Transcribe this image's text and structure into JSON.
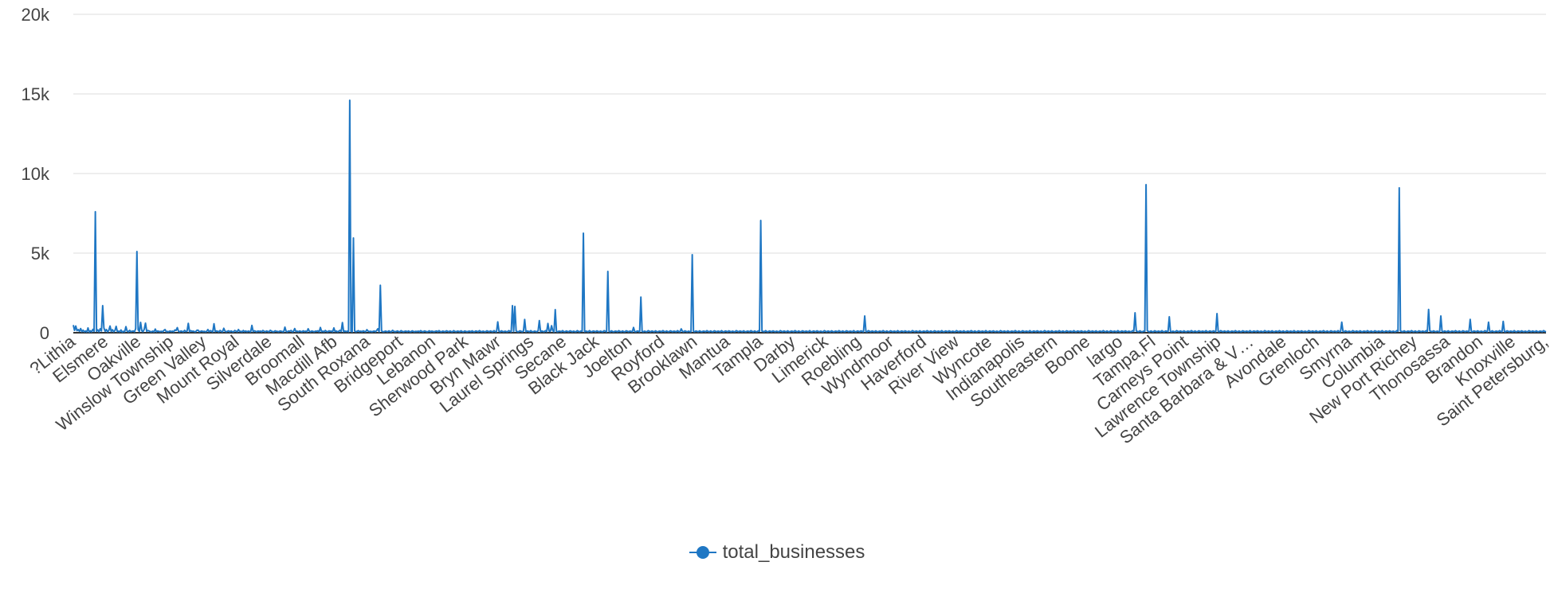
{
  "chart_data": {
    "type": "line",
    "title": "",
    "xlabel": "",
    "ylabel": "",
    "ylim": [
      0,
      20000
    ],
    "y_ticks": [
      0,
      5000,
      10000,
      15000,
      20000
    ],
    "y_tick_labels": [
      "0",
      "5k",
      "10k",
      "15k",
      "20k"
    ],
    "grid": "horizontal",
    "legend_position": "bottom-center",
    "x_tick_labels": [
      "?Lithia",
      "Elsmere",
      "Oakville",
      "Winslow Township",
      "Green Valley",
      "Mount Royal",
      "Silverdale",
      "Broomall",
      "Macdill Afb",
      "South Roxana",
      "Bridgeport",
      "Lebanon",
      "Sherwood Park",
      "Bryn Mawr",
      "Laurel Springs",
      "Secane",
      "Black Jack",
      "Joelton",
      "Royford",
      "Brooklawn",
      "Mantua",
      "Tampla",
      "Darby",
      "Limerick",
      "Roebling",
      "Wyndmoor",
      "Haverford",
      "River View",
      "Wyncote",
      "Indianapolis",
      "Southeastern",
      "Boone",
      "largo",
      "Tampa,Fl",
      "Carneys Point",
      "Lawrence Township",
      "Santa Barbara & V…",
      "Avondale",
      "Grenloch",
      "Smyrna",
      "Columbia",
      "New Port Richey",
      "Thonosassa",
      "Brandon",
      "Knoxville",
      "Saint Petersburg,"
    ],
    "series": [
      {
        "name": "total_businesses",
        "color": "#1f77c4",
        "values": [
          480,
          150,
          420,
          130,
          200,
          90,
          260,
          70,
          160,
          60,
          110,
          50,
          300,
          40,
          120,
          60,
          210,
          80,
          7600,
          90,
          180,
          60,
          250,
          110,
          1700,
          300,
          90,
          200,
          60,
          140,
          420,
          80,
          190,
          60,
          130,
          400,
          70,
          100,
          60,
          170,
          40,
          90,
          60,
          380,
          100,
          60,
          150,
          70,
          90,
          110,
          60,
          260,
          5100,
          180,
          80,
          650,
          120,
          70,
          220,
          600,
          90,
          140,
          110,
          70,
          60,
          100,
          50,
          230,
          60,
          110,
          80,
          70,
          90,
          60,
          140,
          200,
          60,
          80,
          60,
          110,
          70,
          100,
          60,
          170,
          140,
          320,
          90,
          60,
          110,
          80,
          60,
          150,
          70,
          100,
          590,
          60,
          130,
          90,
          100,
          70,
          60,
          150,
          160,
          60,
          80,
          110,
          70,
          90,
          60,
          80,
          200,
          60,
          130,
          90,
          60,
          560,
          70,
          110,
          90,
          60,
          140,
          80,
          60,
          280,
          100,
          60,
          90,
          120,
          60,
          110,
          70,
          60,
          140,
          100,
          60,
          200,
          80,
          90,
          60,
          140,
          70,
          110,
          60,
          100,
          80,
          60,
          460,
          70,
          120,
          90,
          60,
          110,
          80,
          100,
          60,
          140,
          90,
          60,
          110,
          80,
          60,
          150,
          100,
          70,
          60,
          120,
          90,
          80,
          60,
          110,
          90,
          70,
          60,
          350,
          80,
          60,
          110,
          90,
          140,
          60,
          80,
          260,
          70,
          100,
          60,
          110,
          80,
          60,
          120,
          70,
          100,
          60,
          250,
          90,
          60,
          110,
          80,
          60,
          100,
          90,
          120,
          60,
          330,
          70,
          100,
          60,
          140,
          80,
          60,
          120,
          90,
          100,
          60,
          300,
          70,
          110,
          60,
          90,
          150,
          80,
          640,
          60,
          110,
          70,
          100,
          60,
          14600,
          90,
          60,
          5950,
          110,
          60,
          90,
          130,
          70,
          100,
          60,
          120,
          80,
          60,
          190,
          100,
          70,
          90,
          60,
          80,
          110,
          60,
          140,
          250,
          60,
          2980,
          110,
          70,
          60,
          100,
          80,
          60,
          120,
          70,
          60,
          150,
          90,
          60,
          80,
          110,
          70,
          60,
          130,
          80,
          60,
          90,
          100,
          60,
          110,
          70,
          60,
          120,
          80,
          60,
          90,
          70,
          100,
          60,
          130,
          80,
          60,
          110,
          90,
          60,
          70,
          120,
          60,
          100,
          80,
          60,
          90,
          110,
          60,
          130,
          70,
          60,
          100,
          80,
          60,
          120,
          90,
          60,
          110,
          70,
          60,
          130,
          80,
          60,
          100,
          90,
          60,
          120,
          70,
          60,
          110,
          80,
          60,
          90,
          100,
          60,
          120,
          70,
          60,
          110,
          90,
          60,
          130,
          80,
          60,
          100,
          70,
          60,
          120,
          90,
          60,
          110,
          80,
          60,
          130,
          70,
          60,
          680,
          90,
          60,
          120,
          80,
          60,
          100,
          70,
          60,
          130,
          90,
          60,
          1700,
          80,
          1650,
          110,
          70,
          60,
          120,
          90,
          60,
          100,
          830,
          60,
          110,
          90,
          60,
          130,
          70,
          60,
          100,
          80,
          60,
          120,
          760,
          60,
          110,
          80,
          60,
          130,
          70,
          580,
          100,
          90,
          440,
          120,
          60,
          1450,
          80,
          60,
          100,
          90,
          60,
          130,
          70,
          60,
          110,
          80,
          60,
          120,
          90,
          60,
          100,
          70,
          60,
          130,
          80,
          60,
          110,
          90,
          6250,
          60,
          100,
          80,
          60,
          130,
          70,
          60,
          110,
          90,
          60,
          120,
          80,
          60,
          100,
          70,
          60,
          130,
          90,
          60,
          3850,
          80,
          60,
          120,
          70,
          60,
          100,
          90,
          60,
          130,
          80,
          60,
          110,
          70,
          60,
          120,
          90,
          60,
          100,
          80,
          60,
          330,
          70,
          60,
          110,
          90,
          60,
          2240,
          80,
          60,
          100,
          70,
          60,
          130,
          90,
          60,
          110,
          80,
          60,
          120,
          70,
          60,
          100,
          90,
          60,
          130,
          80,
          60,
          110,
          70,
          60,
          120,
          90,
          60,
          100,
          80,
          60,
          130,
          70,
          60,
          240,
          90,
          60,
          120,
          80,
          60,
          100,
          70,
          60,
          4900,
          90,
          60,
          110,
          80,
          60,
          120,
          70,
          60,
          100,
          90,
          60,
          130,
          80,
          60,
          110,
          70,
          60,
          120,
          90,
          60,
          100,
          80,
          60,
          130,
          70,
          60,
          110,
          90,
          60,
          120,
          80,
          60,
          100,
          70,
          60,
          130,
          90,
          60,
          110,
          80,
          60,
          120,
          70,
          60,
          100,
          90,
          60,
          130,
          80,
          60,
          110,
          70,
          60,
          120,
          90,
          7050,
          100,
          80,
          60,
          130,
          70,
          60,
          110,
          90,
          60,
          120,
          80,
          60,
          100,
          70,
          60,
          130,
          90,
          60,
          110,
          80,
          60,
          120,
          70,
          60,
          100,
          90,
          60,
          130,
          80,
          60,
          110,
          70,
          60,
          120,
          90,
          60,
          100,
          80,
          60,
          130,
          70,
          60,
          110,
          90,
          60,
          120,
          80,
          60,
          100,
          70,
          60,
          130,
          90,
          60,
          110,
          80,
          60,
          120,
          70,
          60,
          100,
          90,
          60,
          130,
          80,
          60,
          110,
          70,
          60,
          120,
          90,
          60,
          100,
          80,
          60,
          130,
          70,
          60,
          110,
          90,
          60,
          120,
          80,
          60,
          1050,
          70,
          60,
          130,
          90,
          60,
          110,
          80,
          60,
          120,
          70,
          60,
          100,
          90,
          60,
          130,
          80,
          60,
          110,
          70,
          60,
          120,
          90,
          60,
          100,
          80,
          60,
          130,
          70,
          60,
          110,
          90,
          60,
          120,
          80,
          60,
          100,
          70,
          60,
          130,
          90,
          60,
          110,
          80,
          60,
          120,
          70,
          60,
          100,
          90,
          60,
          130,
          80,
          60,
          110,
          70,
          60,
          120,
          90,
          60,
          100,
          80,
          60,
          130,
          70,
          60,
          110,
          90,
          60,
          120,
          80,
          60,
          100,
          70,
          60,
          130,
          90,
          60,
          110,
          80,
          60,
          120,
          70,
          60,
          100,
          90,
          60,
          130,
          80,
          60,
          110,
          70,
          60,
          120,
          90,
          60,
          100,
          80,
          60,
          130,
          70,
          60,
          110,
          90,
          60,
          120,
          80,
          60,
          100,
          70,
          60,
          130,
          90,
          60,
          110,
          80,
          60,
          120,
          70,
          60,
          100,
          90,
          60,
          130,
          80,
          60,
          110,
          70,
          60,
          120,
          90,
          60,
          100,
          80,
          60,
          130,
          70,
          60,
          110,
          90,
          60,
          120,
          80,
          60,
          100,
          70,
          60,
          130,
          90,
          60,
          110,
          80,
          60,
          120,
          70,
          60,
          100,
          90,
          60,
          130,
          80,
          60,
          110,
          70,
          60,
          120,
          90,
          60,
          100,
          80,
          60,
          130,
          70,
          60,
          110,
          90,
          60,
          120,
          80,
          60,
          100,
          70,
          60,
          130,
          90,
          60,
          110,
          80,
          60,
          120,
          70,
          60,
          100,
          90,
          60,
          130,
          80,
          60,
          110,
          70,
          60,
          120,
          90,
          60,
          100,
          80,
          60,
          130,
          70,
          60,
          110,
          90,
          60,
          120,
          80,
          60,
          100,
          70,
          60,
          130,
          90,
          1250,
          110,
          80,
          60,
          120,
          70,
          60,
          100,
          90,
          9300,
          130,
          80,
          60,
          110,
          70,
          60,
          120,
          90,
          60,
          100,
          80,
          60,
          130,
          70,
          60,
          110,
          90,
          60,
          1000,
          80,
          60,
          100,
          70,
          60,
          130,
          90,
          60,
          110,
          80,
          60,
          120,
          70,
          60,
          100,
          90,
          60,
          130,
          80,
          60,
          110,
          70,
          60,
          120,
          90,
          60,
          100,
          80,
          60,
          130,
          70,
          60,
          110,
          90,
          60,
          120,
          80,
          60,
          1200,
          70,
          60,
          130,
          90,
          60,
          110,
          80,
          60,
          120,
          70,
          60,
          100,
          90,
          60,
          130,
          80,
          60,
          110,
          70,
          60,
          120,
          90,
          60,
          100,
          80,
          60,
          130,
          70,
          60,
          110,
          90,
          60,
          120,
          80,
          60,
          100,
          70,
          60,
          130,
          90,
          60,
          110,
          80,
          60,
          120,
          70,
          60,
          100,
          90,
          60,
          130,
          80,
          60,
          110,
          70,
          60,
          120,
          90,
          60,
          100,
          80,
          60,
          130,
          70,
          60,
          110,
          90,
          60,
          120,
          80,
          60,
          100,
          70,
          60,
          130,
          90,
          60,
          110,
          80,
          60,
          120,
          70,
          60,
          100,
          90,
          60,
          130,
          80,
          60,
          110,
          70,
          60,
          120,
          90,
          60,
          100,
          80,
          60,
          130,
          70,
          60,
          660,
          90,
          60,
          120,
          80,
          60,
          100,
          70,
          60,
          130,
          90,
          60,
          110,
          80,
          60,
          120,
          70,
          60,
          100,
          90,
          60,
          130,
          80,
          60,
          110,
          70,
          60,
          120,
          90,
          60,
          100,
          80,
          60,
          130,
          70,
          60,
          110,
          90,
          60,
          120,
          80,
          60,
          100,
          70,
          60,
          130,
          90,
          9100,
          110,
          80,
          60,
          120,
          70,
          60,
          100,
          90,
          60,
          130,
          80,
          60,
          110,
          70,
          60,
          120,
          90,
          60,
          100,
          80,
          60,
          130,
          70,
          1460,
          110,
          90,
          60,
          120,
          80,
          60,
          100,
          70,
          60,
          1050,
          90,
          60,
          110,
          80,
          60,
          120,
          70,
          60,
          100,
          90,
          60,
          130,
          80,
          60,
          110,
          70,
          60,
          120,
          90,
          60,
          100,
          80,
          60,
          840,
          70,
          60,
          110,
          90,
          60,
          120,
          80,
          60,
          100,
          70,
          60,
          130,
          90,
          60,
          660,
          80,
          60,
          120,
          70,
          60,
          100,
          90,
          60,
          130,
          80,
          60,
          710,
          70,
          60,
          120,
          90,
          60,
          100,
          80,
          60,
          130,
          70,
          60,
          110,
          90,
          60,
          120,
          80,
          60,
          100,
          70,
          60,
          130,
          90,
          60,
          110,
          80,
          60,
          120,
          70,
          60,
          100,
          90,
          60,
          130,
          80,
          60
        ]
      }
    ]
  }
}
